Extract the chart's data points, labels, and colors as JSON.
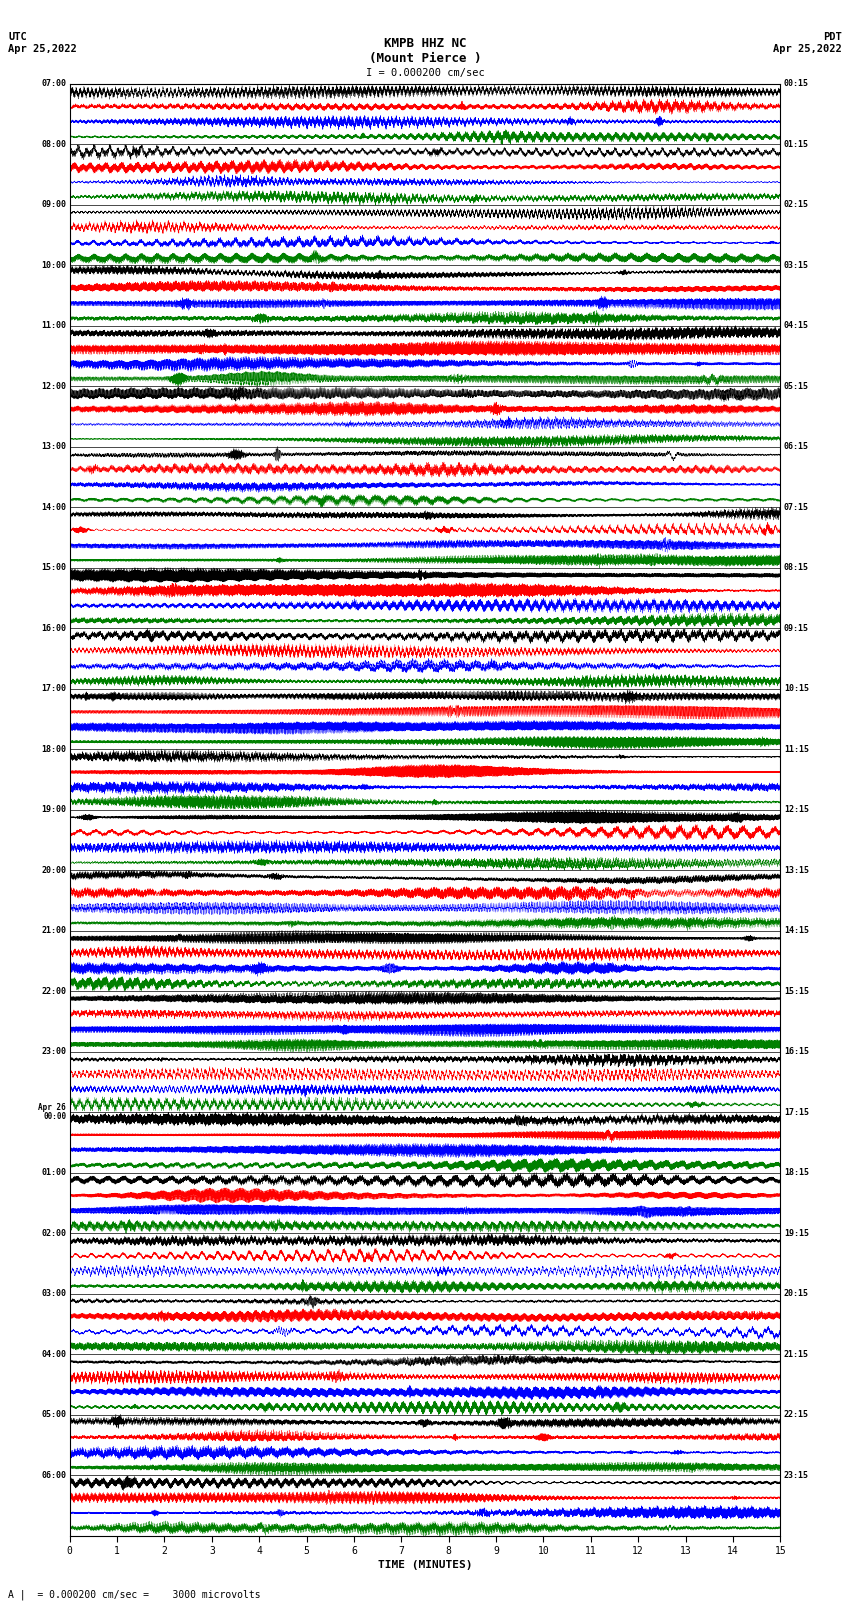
{
  "title_line1": "KMPB HHZ NC",
  "title_line2": "(Mount Pierce )",
  "scale_label": "I = 0.000200 cm/sec",
  "left_header": "UTC\nApr 25,2022",
  "right_header": "PDT\nApr 25,2022",
  "bottom_label": "TIME (MINUTES)",
  "bottom_note": "A |  = 0.000200 cm/sec =    3000 microvolts",
  "xlabel_ticks": [
    0,
    1,
    2,
    3,
    4,
    5,
    6,
    7,
    8,
    9,
    10,
    11,
    12,
    13,
    14,
    15
  ],
  "left_times": [
    "07:00",
    "08:00",
    "09:00",
    "10:00",
    "11:00",
    "12:00",
    "13:00",
    "14:00",
    "15:00",
    "16:00",
    "17:00",
    "18:00",
    "19:00",
    "20:00",
    "21:00",
    "22:00",
    "23:00",
    "Apr 26\n00:00",
    "01:00",
    "02:00",
    "03:00",
    "04:00",
    "05:00",
    "06:00"
  ],
  "right_times": [
    "00:15",
    "01:15",
    "02:15",
    "03:15",
    "04:15",
    "05:15",
    "06:15",
    "07:15",
    "08:15",
    "09:15",
    "10:15",
    "11:15",
    "12:15",
    "13:15",
    "14:15",
    "15:15",
    "16:15",
    "17:15",
    "18:15",
    "19:15",
    "20:15",
    "21:15",
    "22:15",
    "23:15"
  ],
  "n_hours": 24,
  "sub_traces": 4,
  "sub_colors": [
    "black",
    "red",
    "blue",
    "green"
  ],
  "bg_color": "white",
  "fig_width": 8.5,
  "fig_height": 16.13,
  "dpi": 100
}
